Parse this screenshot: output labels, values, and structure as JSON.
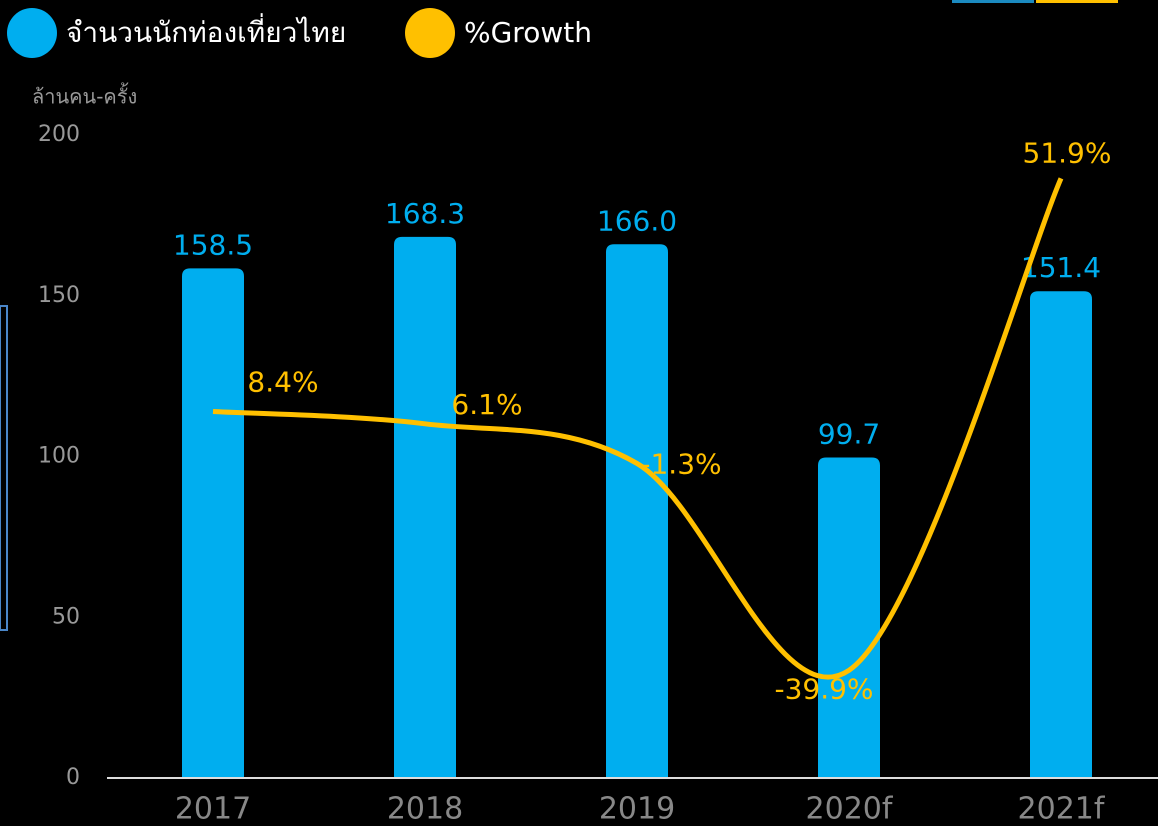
{
  "chart_data": {
    "type": "bar_line",
    "y_label": "ล้านคน-ครั้ง",
    "categories": [
      "2017",
      "2018",
      "2019",
      "2020f",
      "2021f"
    ],
    "ylim": [
      0,
      200
    ],
    "yticks": [
      0,
      50,
      100,
      150,
      200
    ],
    "y2lim": [
      -60,
      60
    ],
    "series": [
      {
        "name": "จำนวนนักท่องเที่ยวไทย",
        "type": "bar",
        "color": "#00aeef",
        "values": [
          158.5,
          168.3,
          166.0,
          99.7,
          151.4
        ],
        "value_labels": [
          "158.5",
          "168.3",
          "166.0",
          "99.7",
          "151.4"
        ]
      },
      {
        "name": "%Growth",
        "type": "line",
        "axis": "y2",
        "color": "#ffc000",
        "values": [
          8.4,
          6.1,
          -1.3,
          -39.9,
          51.9
        ],
        "value_labels": [
          "8.4%",
          "6.1%",
          "-1.3%",
          "-39.9%",
          "51.9%"
        ]
      }
    ]
  }
}
